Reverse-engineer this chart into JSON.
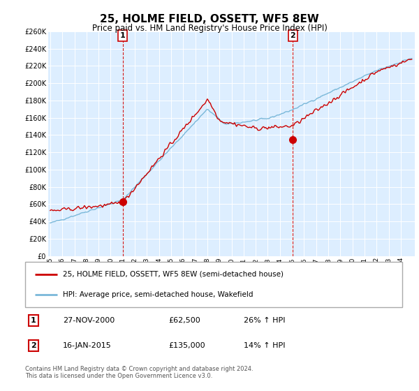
{
  "title": "25, HOLME FIELD, OSSETT, WF5 8EW",
  "subtitle": "Price paid vs. HM Land Registry's House Price Index (HPI)",
  "ylim": [
    0,
    260000
  ],
  "yticks": [
    0,
    20000,
    40000,
    60000,
    80000,
    100000,
    120000,
    140000,
    160000,
    180000,
    200000,
    220000,
    240000,
    260000
  ],
  "background_color": "#ffffff",
  "plot_bg_color": "#ddeeff",
  "grid_color": "#ffffff",
  "sale1_year_idx": 72,
  "sale1_price": 62500,
  "sale1_label": "1",
  "sale1_date_str": "27-NOV-2000",
  "sale1_pct": "26% ↑ HPI",
  "sale2_year_idx": 241,
  "sale2_price": 135000,
  "sale2_label": "2",
  "sale2_date_str": "16-JAN-2015",
  "sale2_pct": "14% ↑ HPI",
  "legend_line1": "25, HOLME FIELD, OSSETT, WF5 8EW (semi-detached house)",
  "legend_line2": "HPI: Average price, semi-detached house, Wakefield",
  "footnote": "Contains HM Land Registry data © Crown copyright and database right 2024.\nThis data is licensed under the Open Government Licence v3.0.",
  "hpi_color": "#7ab8d9",
  "price_color": "#cc0000",
  "dashed_color": "#cc0000",
  "xtick_labels": [
    "95",
    "96",
    "97",
    "98",
    "99",
    "00",
    "01",
    "02",
    "03",
    "04",
    "05",
    "06",
    "07",
    "08",
    "09",
    "10",
    "11",
    "12",
    "13",
    "14",
    "15",
    "16",
    "17",
    "18",
    "19",
    "20",
    "21",
    "22",
    "23",
    "24"
  ]
}
